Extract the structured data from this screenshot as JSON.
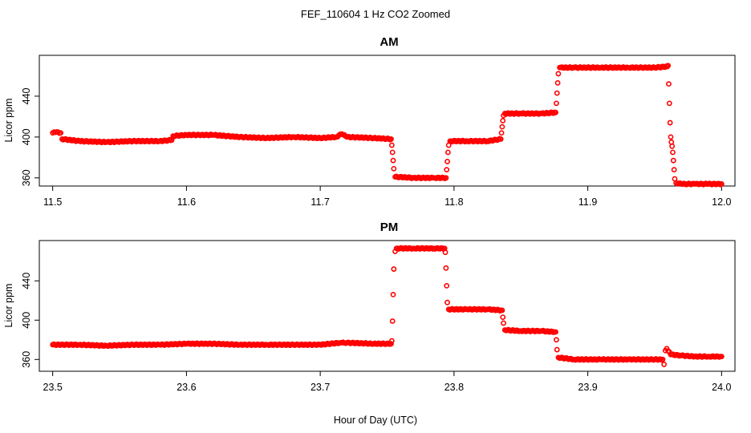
{
  "figure": {
    "title": "FEF_110604  1 Hz CO2 Zoomed",
    "xlabel": "Hour of Day (UTC)"
  },
  "chart_data": [
    {
      "type": "scatter",
      "title": "AM",
      "ylabel": "Licor ppm",
      "xlabel": "Hour of Day (UTC)",
      "xlim": [
        11.49,
        12.01
      ],
      "ylim": [
        352,
        480
      ],
      "xticks": [
        "11.5",
        "11.6",
        "11.7",
        "11.8",
        "11.9",
        "12.0"
      ],
      "yticks": [
        "360",
        "400",
        "440"
      ],
      "marker": "open circle",
      "color": "#ff0000",
      "x": [
        11.5,
        11.503,
        11.506,
        11.507,
        11.52,
        11.54,
        11.56,
        11.58,
        11.589,
        11.59,
        11.6,
        11.62,
        11.64,
        11.66,
        11.68,
        11.7,
        11.712,
        11.716,
        11.72,
        11.74,
        11.753,
        11.7535,
        11.754,
        11.7545,
        11.755,
        11.756,
        11.77,
        11.785,
        11.794,
        11.7945,
        11.795,
        11.7955,
        11.796,
        11.797,
        11.81,
        11.825,
        11.835,
        11.8355,
        11.836,
        11.8365,
        11.837,
        11.838,
        11.85,
        11.865,
        11.876,
        11.8765,
        11.877,
        11.8775,
        11.878,
        11.879,
        11.89,
        11.91,
        11.93,
        11.95,
        11.9595,
        11.96,
        11.9605,
        11.961,
        11.9615,
        11.962,
        11.9625,
        11.963,
        11.9635,
        11.964,
        11.9645,
        11.965,
        11.966,
        11.97,
        11.98,
        11.99,
        12.0
      ],
      "y": [
        404,
        405,
        404,
        398,
        396,
        395,
        396,
        396,
        397,
        401,
        402,
        402,
        400,
        399,
        400,
        399,
        400,
        403,
        400,
        399,
        398,
        392,
        385,
        377,
        369,
        361,
        360,
        360,
        360,
        368,
        376,
        385,
        392,
        396,
        396,
        396,
        398,
        404,
        410,
        416,
        421,
        423,
        423,
        423,
        424,
        433,
        443,
        453,
        462,
        468,
        468,
        468,
        468,
        468,
        469,
        470,
        452,
        433,
        414,
        400,
        395,
        391,
        385,
        377,
        368,
        359,
        355,
        354,
        354,
        354,
        354
      ]
    },
    {
      "type": "scatter",
      "title": "PM",
      "ylabel": "Licor ppm",
      "xlabel": "Hour of Day (UTC)",
      "xlim": [
        23.49,
        24.01
      ],
      "ylim": [
        348,
        481
      ],
      "xticks": [
        "23.5",
        "23.6",
        "23.7",
        "23.8",
        "23.9",
        "24.0"
      ],
      "yticks": [
        "360",
        "400",
        "440"
      ],
      "marker": "open circle",
      "color": "#ff0000",
      "x": [
        23.5,
        23.52,
        23.54,
        23.56,
        23.58,
        23.6,
        23.62,
        23.64,
        23.66,
        23.68,
        23.7,
        23.715,
        23.72,
        23.74,
        23.753,
        23.7535,
        23.754,
        23.7545,
        23.755,
        23.756,
        23.757,
        23.77,
        23.785,
        23.793,
        23.7935,
        23.794,
        23.7945,
        23.795,
        23.796,
        23.81,
        23.825,
        23.836,
        23.8365,
        23.837,
        23.838,
        23.85,
        23.865,
        23.876,
        23.8765,
        23.877,
        23.878,
        23.89,
        23.91,
        23.93,
        23.95,
        23.956,
        23.957,
        23.958,
        23.959,
        23.962,
        23.97,
        23.98,
        23.99,
        24.0
      ],
      "y": [
        375,
        375,
        374,
        375,
        375,
        376,
        376,
        375,
        375,
        375,
        375,
        377,
        377,
        376,
        376,
        379,
        399,
        426,
        452,
        470,
        473,
        473,
        473,
        473,
        469,
        453,
        435,
        418,
        411,
        411,
        411,
        410,
        403,
        397,
        390,
        389,
        389,
        388,
        380,
        370,
        362,
        360,
        360,
        360,
        360,
        360,
        355,
        369,
        371,
        365,
        364,
        363,
        363,
        363
      ]
    }
  ]
}
